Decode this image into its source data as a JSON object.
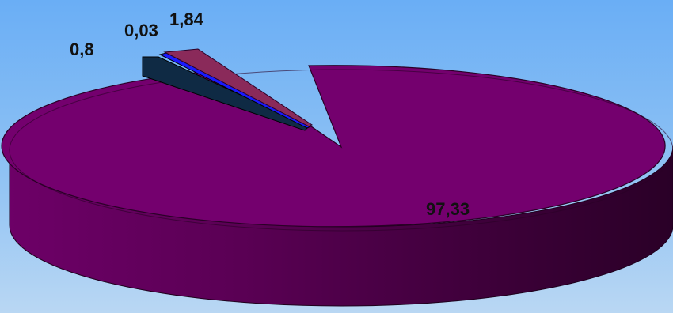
{
  "chart_data": {
    "type": "pie",
    "style": "3d-exploded",
    "slices": [
      {
        "label": "97,33",
        "value": 97.33,
        "color": "#74006e"
      },
      {
        "label": "0,8",
        "value": 0.8,
        "color": "#0f2a44"
      },
      {
        "label": "0,03",
        "value": 0.03,
        "color": "#1a1aff"
      },
      {
        "label": "1,84",
        "value": 1.84,
        "color": "#8a2a5a"
      }
    ],
    "legend": "none",
    "data_labels": "outside"
  }
}
